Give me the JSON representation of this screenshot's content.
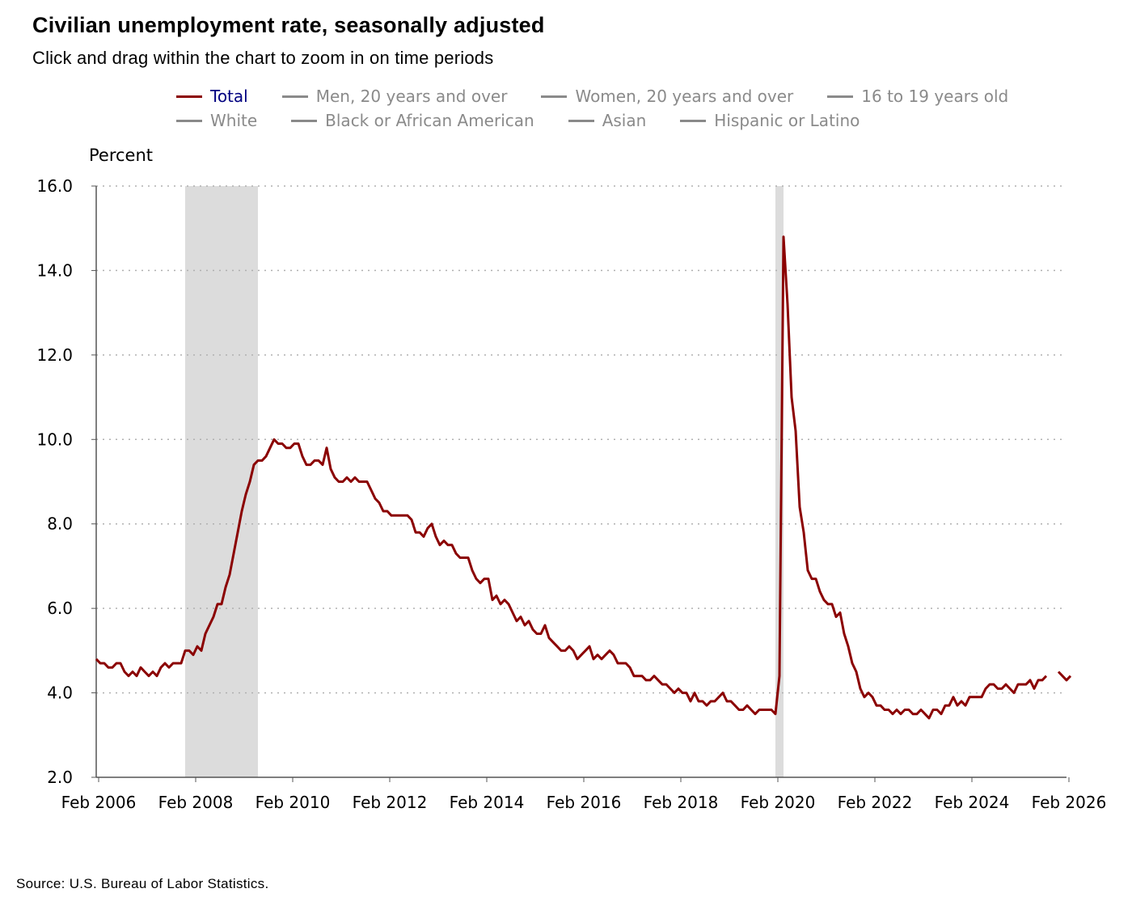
{
  "title": "Civilian unemployment rate, seasonally adjusted",
  "subtitle": "Click and drag within the chart to zoom in on time periods",
  "legend": [
    {
      "label": "Total",
      "active": true
    },
    {
      "label": "Men, 20 years and over",
      "active": false
    },
    {
      "label": "Women, 20 years and over",
      "active": false
    },
    {
      "label": "16 to 19 years old",
      "active": false
    },
    {
      "label": "White",
      "active": false
    },
    {
      "label": "Black or African American",
      "active": false
    },
    {
      "label": "Asian",
      "active": false
    },
    {
      "label": "Hispanic or Latino",
      "active": false
    }
  ],
  "source": "Source: U.S. Bureau of Labor Statistics.",
  "colors": {
    "series": "#8b0000",
    "recession": "#dcdcdc",
    "grid": "#b0b0b0",
    "inactive": "#8a8a8a",
    "active_label": "#000080"
  },
  "chart_data": {
    "type": "line",
    "ylabel": "Percent",
    "xlabel": "",
    "ylim": [
      2.0,
      16.0
    ],
    "yticks": [
      "2.0",
      "4.0",
      "6.0",
      "8.0",
      "10.0",
      "12.0",
      "14.0",
      "16.0"
    ],
    "xticks": [
      "Feb 2006",
      "Feb 2008",
      "Feb 2010",
      "Feb 2012",
      "Feb 2014",
      "Feb 2016",
      "Feb 2018",
      "Feb 2020",
      "Feb 2022",
      "Feb 2024",
      "Feb 2026"
    ],
    "x_start": "2006-02",
    "x_end": "2026-02",
    "recessions": [
      {
        "start": "2007-12",
        "end": "2009-06"
      },
      {
        "start": "2020-02",
        "end": "2020-04"
      }
    ],
    "series": [
      {
        "name": "Total",
        "start": "2006-02",
        "values": [
          4.8,
          4.7,
          4.7,
          4.6,
          4.6,
          4.7,
          4.7,
          4.5,
          4.4,
          4.5,
          4.4,
          4.6,
          4.5,
          4.4,
          4.5,
          4.4,
          4.6,
          4.7,
          4.6,
          4.7,
          4.7,
          4.7,
          5.0,
          5.0,
          4.9,
          5.1,
          5.0,
          5.4,
          5.6,
          5.8,
          6.1,
          6.1,
          6.5,
          6.8,
          7.3,
          7.8,
          8.3,
          8.7,
          9.0,
          9.4,
          9.5,
          9.5,
          9.6,
          9.8,
          10.0,
          9.9,
          9.9,
          9.8,
          9.8,
          9.9,
          9.9,
          9.6,
          9.4,
          9.4,
          9.5,
          9.5,
          9.4,
          9.8,
          9.3,
          9.1,
          9.0,
          9.0,
          9.1,
          9.0,
          9.1,
          9.0,
          9.0,
          9.0,
          8.8,
          8.6,
          8.5,
          8.3,
          8.3,
          8.2,
          8.2,
          8.2,
          8.2,
          8.2,
          8.1,
          7.8,
          7.8,
          7.7,
          7.9,
          8.0,
          7.7,
          7.5,
          7.6,
          7.5,
          7.5,
          7.3,
          7.2,
          7.2,
          7.2,
          6.9,
          6.7,
          6.6,
          6.7,
          6.7,
          6.2,
          6.3,
          6.1,
          6.2,
          6.1,
          5.9,
          5.7,
          5.8,
          5.6,
          5.7,
          5.5,
          5.4,
          5.4,
          5.6,
          5.3,
          5.2,
          5.1,
          5.0,
          5.0,
          5.1,
          5.0,
          4.8,
          4.9,
          5.0,
          5.1,
          4.8,
          4.9,
          4.8,
          4.9,
          5.0,
          4.9,
          4.7,
          4.7,
          4.7,
          4.6,
          4.4,
          4.4,
          4.4,
          4.3,
          4.3,
          4.4,
          4.3,
          4.2,
          4.2,
          4.1,
          4.0,
          4.1,
          4.0,
          4.0,
          3.8,
          4.0,
          3.8,
          3.8,
          3.7,
          3.8,
          3.8,
          3.9,
          4.0,
          3.8,
          3.8,
          3.7,
          3.6,
          3.6,
          3.7,
          3.6,
          3.5,
          3.6,
          3.6,
          3.6,
          3.6,
          3.5,
          4.4,
          14.8,
          13.2,
          11.0,
          10.2,
          8.4,
          7.8,
          6.9,
          6.7,
          6.7,
          6.4,
          6.2,
          6.1,
          6.1,
          5.8,
          5.9,
          5.4,
          5.1,
          4.7,
          4.5,
          4.1,
          3.9,
          4.0,
          3.9,
          3.7,
          3.7,
          3.6,
          3.6,
          3.5,
          3.6,
          3.5,
          3.6,
          3.6,
          3.5,
          3.5,
          3.6,
          3.5,
          3.4,
          3.6,
          3.6,
          3.5,
          3.7,
          3.7,
          3.9,
          3.7,
          3.8,
          3.7,
          3.9,
          3.9,
          3.9,
          3.9,
          4.1,
          4.2,
          4.2,
          4.1,
          4.1,
          4.2,
          4.1,
          4.0,
          4.2,
          4.2,
          4.2,
          4.3,
          4.1,
          4.3,
          4.3,
          4.4,
          null,
          null,
          4.5,
          4.4,
          4.3,
          4.4
        ]
      }
    ]
  }
}
